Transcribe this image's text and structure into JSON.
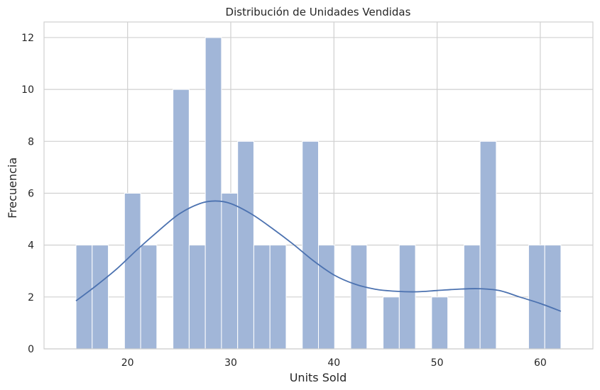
{
  "chart_data": {
    "type": "bar",
    "subtype": "histogram-with-kde",
    "title": "Distribución de Unidades Vendidas",
    "xlabel": "Units Sold",
    "ylabel": "Frecuencia",
    "xlim": [
      11.9,
      65.1
    ],
    "ylim": [
      0,
      12.6
    ],
    "xticks": [
      "20",
      "30",
      "40",
      "50",
      "60"
    ],
    "yticks": [
      "0",
      "2",
      "4",
      "6",
      "8",
      "10",
      "12"
    ],
    "grid": true,
    "bin_width": 1.5667,
    "bins": [
      {
        "start": 15.0,
        "count": 4
      },
      {
        "start": 16.567,
        "count": 4
      },
      {
        "start": 18.133,
        "count": 0
      },
      {
        "start": 19.7,
        "count": 6
      },
      {
        "start": 21.267,
        "count": 4
      },
      {
        "start": 22.833,
        "count": 0
      },
      {
        "start": 24.4,
        "count": 10
      },
      {
        "start": 25.967,
        "count": 4
      },
      {
        "start": 27.533,
        "count": 12
      },
      {
        "start": 29.1,
        "count": 6
      },
      {
        "start": 30.667,
        "count": 8
      },
      {
        "start": 32.233,
        "count": 4
      },
      {
        "start": 33.8,
        "count": 4
      },
      {
        "start": 35.367,
        "count": 0
      },
      {
        "start": 36.933,
        "count": 8
      },
      {
        "start": 38.5,
        "count": 4
      },
      {
        "start": 40.067,
        "count": 0
      },
      {
        "start": 41.633,
        "count": 4
      },
      {
        "start": 43.2,
        "count": 0
      },
      {
        "start": 44.767,
        "count": 2
      },
      {
        "start": 46.333,
        "count": 4
      },
      {
        "start": 47.9,
        "count": 0
      },
      {
        "start": 49.467,
        "count": 2
      },
      {
        "start": 51.033,
        "count": 0
      },
      {
        "start": 52.6,
        "count": 4
      },
      {
        "start": 54.167,
        "count": 8
      },
      {
        "start": 55.733,
        "count": 0
      },
      {
        "start": 57.3,
        "count": 0
      },
      {
        "start": 58.867,
        "count": 4
      },
      {
        "start": 60.433,
        "count": 4
      }
    ],
    "kde": {
      "x": [
        15,
        17,
        19,
        21,
        23,
        25,
        27,
        28.5,
        30,
        32,
        34,
        36,
        38,
        40,
        42,
        44,
        46,
        48,
        50,
        52,
        54,
        56,
        58,
        60,
        62
      ],
      "y": [
        1.85,
        2.45,
        3.1,
        3.85,
        4.55,
        5.2,
        5.6,
        5.7,
        5.6,
        5.2,
        4.65,
        4.05,
        3.4,
        2.85,
        2.5,
        2.3,
        2.22,
        2.2,
        2.25,
        2.3,
        2.32,
        2.25,
        2.0,
        1.75,
        1.45
      ]
    },
    "colors": {
      "bar": "#a1b6d8",
      "bar_edge": "#ffffff",
      "kde": "#4c72b0",
      "grid": "#d0d0d0",
      "text": "#262626"
    }
  }
}
